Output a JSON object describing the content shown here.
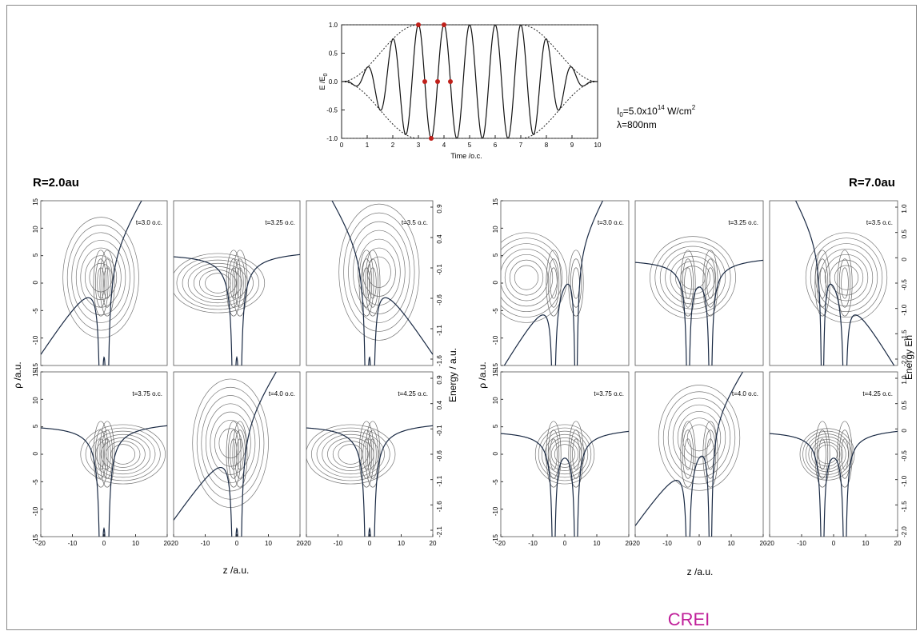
{
  "pulse_chart": {
    "y_label": "E /E",
    "y_label_sub": "0",
    "x_label": "Time /o.c.",
    "x_ticks": [
      "0",
      "1",
      "2",
      "3",
      "4",
      "5",
      "6",
      "7",
      "8",
      "9",
      "10"
    ],
    "y_ticks": [
      "1.0",
      "0.5",
      "0.0",
      "-0.5",
      "-1.0"
    ],
    "intensity_prefix": "I",
    "intensity_sub": "0",
    "intensity_main": "=5.0x10",
    "intensity_exp": "14",
    "intensity_unit": " W/cm",
    "intensity_unit_exp": "2",
    "wavelength": "λ=800nm"
  },
  "chart_data": [
    {
      "type": "line",
      "x": [
        0,
        1,
        2,
        3,
        4,
        5,
        6,
        7,
        8,
        9,
        10
      ],
      "series": [],
      "xlabel": "Time /o.c.",
      "ylabel": "E /E0",
      "xlim": [
        0,
        10
      ],
      "ylim": [
        -1.0,
        1.0
      ],
      "description_points": [
        [
          3.0,
          1.0
        ],
        [
          3.25,
          0.0
        ],
        [
          3.5,
          -1.0
        ],
        [
          3.75,
          0.0
        ],
        [
          4.0,
          1.0
        ],
        [
          4.25,
          0.0
        ]
      ],
      "envelope_ramp_oc": 3,
      "carrier_period_oc": 1
    }
  ],
  "left_panel": {
    "title": "R=2.0au",
    "panels": [
      "t=3.0 o.c.",
      "t=3.25 o.c.",
      "t=3.5 o.c.",
      "t=3.75 o.c.",
      "t=4.0 o.c.",
      "t=4.25 o.c."
    ],
    "y_ticks": [
      "15",
      "10",
      "5",
      "0",
      "-5",
      "-10",
      "-15"
    ],
    "x_ticks": [
      "-20",
      "-10",
      "0",
      "10",
      "20"
    ],
    "energy_ticks_top": [
      "0.9",
      "0.4",
      "-0.1",
      "-0.6",
      "-1.1",
      "-1.6"
    ],
    "energy_ticks_bottom": [
      "0.9",
      "0.4",
      "-0.1",
      "-0.6",
      "-1.1",
      "-1.6",
      "-2.1"
    ],
    "energy_label": "Energy  / a.u.",
    "rho_label": "ρ  /a.u.",
    "z_label": "z  /a.u."
  },
  "right_panel": {
    "title": "R=7.0au",
    "panels": [
      "t=3.0 o.c.",
      "t=3.25 o.c.",
      "t=3.5 o.c.",
      "t=3.75 o.c.",
      "t=4.0 o.c.",
      "t=4.25 o.c."
    ],
    "y_ticks": [
      "15",
      "10",
      "5",
      "0",
      "-5",
      "-10",
      "-15"
    ],
    "x_ticks": [
      "-20",
      "-10",
      "0",
      "10",
      "20"
    ],
    "energy_ticks_top": [
      "1.0",
      "0.5",
      "0",
      "-0.5",
      "-1.0",
      "-1.5",
      "-2.0"
    ],
    "energy_ticks_bottom": [
      "1.0",
      "0.5",
      "0",
      "-0.5",
      "-1.0",
      "-1.5",
      "-2.0"
    ],
    "energy_label": "Energy Eh",
    "rho_label": "ρ  /a.u.",
    "z_label": "z  /a.u."
  },
  "footer": {
    "label": "CREI"
  }
}
